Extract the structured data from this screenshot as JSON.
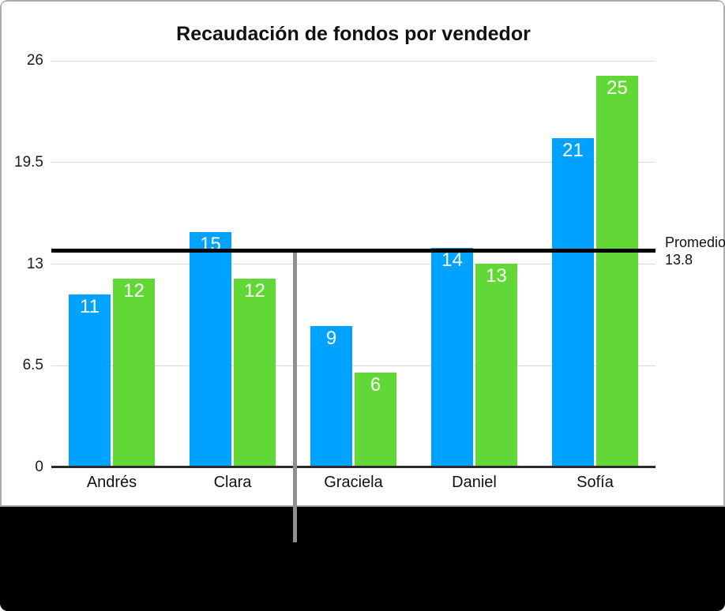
{
  "chart_data": {
    "type": "bar",
    "title": "Recaudación de fondos por vendedor",
    "categories": [
      "Andrés",
      "Clara",
      "Graciela",
      "Daniel",
      "Sofía"
    ],
    "series": [
      {
        "key": "blue-series",
        "color": "#00A2FF",
        "values": [
          11,
          15,
          9,
          14,
          21
        ]
      },
      {
        "key": "green-series",
        "color": "#61D836",
        "values": [
          12,
          12,
          6,
          13,
          25
        ]
      }
    ],
    "bar_value_labels_shown": true,
    "ylim": [
      0,
      26
    ],
    "y_ticks": [
      {
        "label": "26",
        "value": 26
      },
      {
        "label": "19.5",
        "value": 19.5
      },
      {
        "label": "13",
        "value": 13
      },
      {
        "label": "6.5",
        "value": 6.5
      },
      {
        "label": "0",
        "value": 0
      }
    ],
    "grid": true,
    "legend": "none",
    "reference_line": {
      "value": 13.8,
      "label_lines": [
        "Promedio",
        "13.8"
      ],
      "color": "#000000"
    },
    "divider_line": {
      "between_categories": [
        "Clara",
        "Graciela"
      ],
      "color": "#8F8F8F"
    }
  },
  "style": {
    "gridline_color": "#D9D9D9",
    "axis_line_color": "#2B2B2B",
    "tick_text_color": "#1C1C1C",
    "panel_border_color": "#ABABAB",
    "footer_background": "#000000",
    "value_label_color": "#FFFFFF"
  }
}
